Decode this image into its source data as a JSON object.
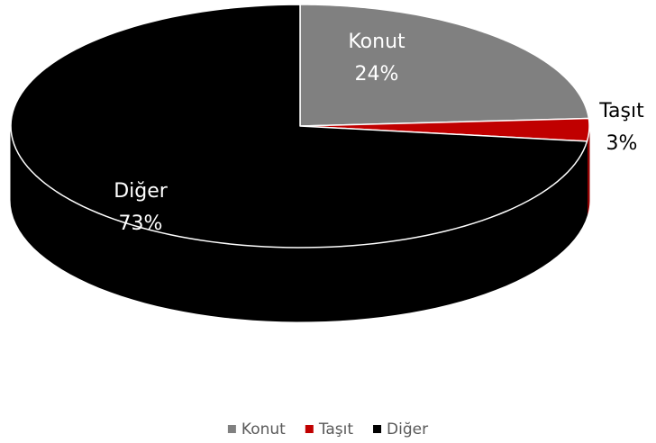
{
  "chart_data": {
    "type": "pie3d",
    "categories": [
      "Konut",
      "Taşıt",
      "Diğer"
    ],
    "values": [
      24,
      3,
      73
    ],
    "value_labels": [
      "24%",
      "3%",
      "73%"
    ],
    "colors": [
      "#808080",
      "#c00000",
      "#000000"
    ],
    "legend": "bottom"
  }
}
